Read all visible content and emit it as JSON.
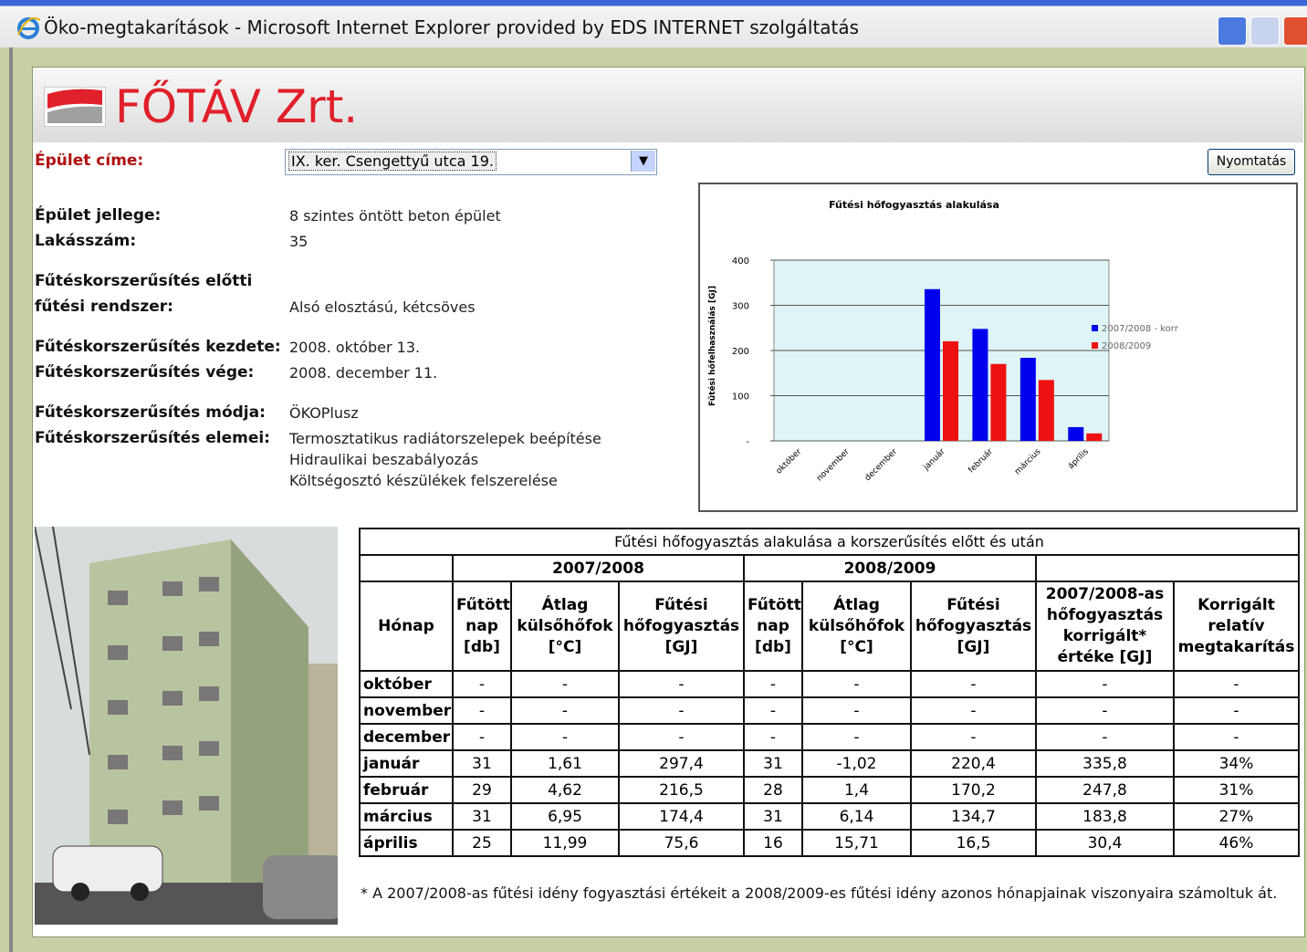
{
  "window": {
    "title": "Öko-megtakarítások - Microsoft Internet Explorer provided by EDS INTERNET szolgáltatás"
  },
  "header": {
    "logo": "FŐTÁV Zrt."
  },
  "form": {
    "address_label": "Épület címe:",
    "address_value": "IX. ker. Csengettyű utca 19.",
    "print_button": "Nyomtatás"
  },
  "details": [
    {
      "label": [
        "Épület jellege:"
      ],
      "value": [
        "8 szintes öntött beton épület"
      ]
    },
    {
      "label": [
        "Lakásszám:"
      ],
      "value": [
        "35"
      ]
    },
    {
      "label": [
        "Fűtéskorszerűsítés előtti",
        "fűtési rendszer:"
      ],
      "value": [
        "Alsó elosztású, kétcsöves"
      ]
    },
    {
      "label": [
        "Fűtéskorszerűsítés kezdete:"
      ],
      "value": [
        "2008. október 13."
      ]
    },
    {
      "label": [
        "Fűtéskorszerűsítés vége:"
      ],
      "value": [
        "2008. december 11."
      ]
    },
    {
      "label": [
        "Fűtéskorszerűsítés módja:"
      ],
      "value": [
        "ÖKOPlusz"
      ]
    },
    {
      "label": [
        "Fűtéskorszerűsítés elemei:"
      ],
      "value": [
        "Termosztatikus radiátorszelepek beépítése",
        "Hidraulikai beszabályozás",
        "Költségosztó készülékek felszerelése"
      ]
    }
  ],
  "chart_data": {
    "type": "bar",
    "title": "Fűtési hőfogyasztás alakulása",
    "y_label": "Fűtési hőfelhasználás [GJ]",
    "categories": [
      "október",
      "november",
      "december",
      "január",
      "február",
      "március",
      "április"
    ],
    "series": [
      {
        "name": "2007/2008 - korr",
        "color": "#0000ee",
        "values": [
          null,
          null,
          null,
          335.8,
          247.8,
          183.8,
          30.4
        ]
      },
      {
        "name": "2008/2009",
        "color": "#ee1111",
        "values": [
          null,
          null,
          null,
          220.4,
          170.2,
          134.7,
          16.5
        ]
      }
    ],
    "ylim": [
      0,
      400
    ],
    "yticks": [
      {
        "value": 0,
        "label": "-"
      },
      100,
      200,
      300,
      400
    ],
    "grid": true,
    "legend": "right"
  },
  "table": {
    "title": "Fűtési hőfogyasztás alakulása a korszerűsítés előtt és után",
    "groups": [
      "2007/2008",
      "2008/2009"
    ],
    "headers": [
      "Hónap",
      "Fűtött nap [db]",
      "Átlag külsőhőfok [°C]",
      "Fűtési hőfogyasztás [GJ]",
      "Fűtött nap [db]",
      "Átlag külsőhőfok [°C]",
      "Fűtési hőfogyasztás [GJ]",
      "2007/2008-as hőfogyasztás korrigált* értéke [GJ]",
      "Korrigált relatív megtakarítás"
    ],
    "rows": [
      [
        "október",
        "-",
        "-",
        "-",
        "-",
        "-",
        "-",
        "-",
        "-"
      ],
      [
        "november",
        "-",
        "-",
        "-",
        "-",
        "-",
        "-",
        "-",
        "-"
      ],
      [
        "december",
        "-",
        "-",
        "-",
        "-",
        "-",
        "-",
        "-",
        "-"
      ],
      [
        "január",
        "31",
        "1,61",
        "297,4",
        "31",
        "-1,02",
        "220,4",
        "335,8",
        "34%"
      ],
      [
        "február",
        "29",
        "4,62",
        "216,5",
        "28",
        "1,4",
        "170,2",
        "247,8",
        "31%"
      ],
      [
        "március",
        "31",
        "6,95",
        "174,4",
        "31",
        "6,14",
        "134,7",
        "183,8",
        "27%"
      ],
      [
        "április",
        "25",
        "11,99",
        "75,6",
        "16",
        "15,71",
        "16,5",
        "30,4",
        "46%"
      ]
    ]
  },
  "footnote": "* A 2007/2008-as fűtési idény fogyasztási értékeit a 2008/2009-es fűtési idény azonos hónapjainak viszonyaira számoltuk át."
}
